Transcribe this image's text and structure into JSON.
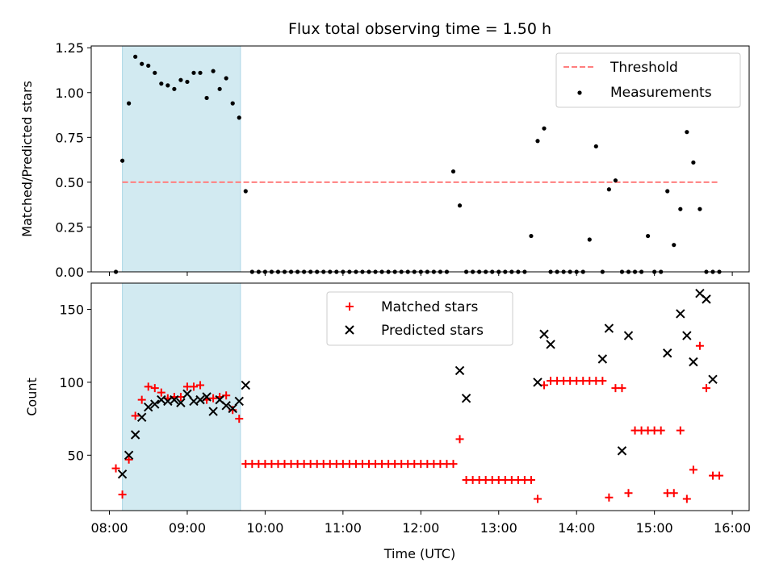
{
  "title": "Flux total observing time = 1.50 h",
  "colors": {
    "shade": "#add8e6",
    "threshold": "#ff7f7f",
    "matched": "#ff0000",
    "predicted": "#000000",
    "measurement": "#000000"
  },
  "chart_data": [
    {
      "type": "scatter",
      "panel": "top",
      "ylabel": "Matched/Predicted stars",
      "xlim": [
        "07:46",
        "16:13"
      ],
      "ylim": [
        0,
        1.26
      ],
      "grid": false,
      "legend_placement": "top-right",
      "y_ticks": [
        {
          "value": 0,
          "label": "0.00"
        },
        {
          "value": 0.25,
          "label": "0.25"
        },
        {
          "value": 0.5,
          "label": "0.50"
        },
        {
          "value": 0.75,
          "label": "0.75"
        },
        {
          "value": 1.0,
          "label": "1.00"
        },
        {
          "value": 1.25,
          "label": "1.25"
        }
      ],
      "shaded_interval": [
        "08:10",
        "09:41"
      ],
      "threshold": {
        "name": "Threshold",
        "value": 0.5,
        "x_start": "08:10",
        "x_end": "15:50"
      },
      "series": [
        {
          "name": "Measurements",
          "marker": "dot",
          "x": [
            "08:05",
            "08:10",
            "08:15",
            "08:20",
            "08:25",
            "08:30",
            "08:35",
            "08:40",
            "08:45",
            "08:50",
            "08:55",
            "09:00",
            "09:05",
            "09:10",
            "09:15",
            "09:20",
            "09:25",
            "09:30",
            "09:35",
            "09:40",
            "09:45",
            "09:50",
            "09:55",
            "10:00",
            "10:05",
            "10:10",
            "10:15",
            "10:20",
            "10:25",
            "10:30",
            "10:35",
            "10:40",
            "10:45",
            "10:50",
            "10:55",
            "11:00",
            "11:05",
            "11:10",
            "11:15",
            "11:20",
            "11:25",
            "11:30",
            "11:35",
            "11:40",
            "11:45",
            "11:50",
            "11:55",
            "12:00",
            "12:05",
            "12:10",
            "12:15",
            "12:20",
            "12:25",
            "12:30",
            "12:35",
            "12:40",
            "12:45",
            "12:50",
            "12:55",
            "13:00",
            "13:05",
            "13:10",
            "13:15",
            "13:20",
            "13:25",
            "13:30",
            "13:35",
            "13:40",
            "13:45",
            "13:50",
            "13:55",
            "14:00",
            "14:05",
            "14:10",
            "14:15",
            "14:20",
            "14:25",
            "14:30",
            "14:35",
            "14:40",
            "14:45",
            "14:50",
            "14:55",
            "15:00",
            "15:05",
            "15:10",
            "15:15",
            "15:20",
            "15:25",
            "15:30",
            "15:35",
            "15:40",
            "15:45",
            "15:50"
          ],
          "y": [
            0,
            0.62,
            0.94,
            1.2,
            1.16,
            1.15,
            1.11,
            1.05,
            1.04,
            1.02,
            1.07,
            1.06,
            1.11,
            1.11,
            0.97,
            1.12,
            1.02,
            1.08,
            0.94,
            0.86,
            0.45,
            0,
            0,
            0,
            0,
            0,
            0,
            0,
            0,
            0,
            0,
            0,
            0,
            0,
            0,
            0,
            0,
            0,
            0,
            0,
            0,
            0,
            0,
            0,
            0,
            0,
            0,
            0,
            0,
            0,
            0,
            0,
            0.56,
            0.37,
            0,
            0,
            0,
            0,
            0,
            0,
            0,
            0,
            0,
            0,
            0.2,
            0.73,
            0.8,
            0,
            0,
            0,
            0,
            0,
            0,
            0.18,
            0.7,
            0,
            0.46,
            0.51,
            0,
            0,
            0,
            0,
            0.2,
            0,
            0,
            0.45,
            0.15,
            0.35,
            0.78,
            0.61,
            0.35,
            0,
            0,
            0
          ]
        }
      ]
    },
    {
      "type": "scatter",
      "panel": "bottom",
      "xlabel": "Time (UTC)",
      "ylabel": "Count",
      "xlim": [
        "07:46",
        "16:13"
      ],
      "ylim": [
        12,
        168
      ],
      "grid": false,
      "legend_placement": "top-center",
      "x_ticks": [
        "08:00",
        "09:00",
        "10:00",
        "11:00",
        "12:00",
        "13:00",
        "14:00",
        "15:00",
        "16:00"
      ],
      "y_ticks": [
        {
          "value": 50,
          "label": "50"
        },
        {
          "value": 100,
          "label": "100"
        },
        {
          "value": 150,
          "label": "150"
        }
      ],
      "shaded_interval": [
        "08:10",
        "09:41"
      ],
      "series": [
        {
          "name": "Matched stars",
          "marker": "plus",
          "points": [
            [
              "08:05",
              41
            ],
            [
              "08:10",
              23
            ],
            [
              "08:15",
              47
            ],
            [
              "08:20",
              77
            ],
            [
              "08:25",
              88
            ],
            [
              "08:30",
              97
            ],
            [
              "08:35",
              96
            ],
            [
              "08:40",
              93
            ],
            [
              "08:45",
              89
            ],
            [
              "08:50",
              90
            ],
            [
              "08:55",
              90
            ],
            [
              "09:00",
              97
            ],
            [
              "09:05",
              97
            ],
            [
              "09:10",
              98
            ],
            [
              "09:15",
              88
            ],
            [
              "09:20",
              89
            ],
            [
              "09:25",
              90
            ],
            [
              "09:30",
              91
            ],
            [
              "09:35",
              81
            ],
            [
              "09:40",
              75
            ],
            [
              "09:45",
              44
            ],
            [
              "09:50",
              44
            ],
            [
              "09:55",
              44
            ],
            [
              "10:00",
              44
            ],
            [
              "10:05",
              44
            ],
            [
              "10:10",
              44
            ],
            [
              "10:15",
              44
            ],
            [
              "10:20",
              44
            ],
            [
              "10:25",
              44
            ],
            [
              "10:30",
              44
            ],
            [
              "10:35",
              44
            ],
            [
              "10:40",
              44
            ],
            [
              "10:45",
              44
            ],
            [
              "10:50",
              44
            ],
            [
              "10:55",
              44
            ],
            [
              "11:00",
              44
            ],
            [
              "11:05",
              44
            ],
            [
              "11:10",
              44
            ],
            [
              "11:15",
              44
            ],
            [
              "11:20",
              44
            ],
            [
              "11:25",
              44
            ],
            [
              "11:30",
              44
            ],
            [
              "11:35",
              44
            ],
            [
              "11:40",
              44
            ],
            [
              "11:45",
              44
            ],
            [
              "11:50",
              44
            ],
            [
              "11:55",
              44
            ],
            [
              "12:00",
              44
            ],
            [
              "12:05",
              44
            ],
            [
              "12:10",
              44
            ],
            [
              "12:15",
              44
            ],
            [
              "12:20",
              44
            ],
            [
              "12:25",
              44
            ],
            [
              "12:30",
              61
            ],
            [
              "12:35",
              33
            ],
            [
              "12:40",
              33
            ],
            [
              "12:45",
              33
            ],
            [
              "12:50",
              33
            ],
            [
              "12:55",
              33
            ],
            [
              "13:00",
              33
            ],
            [
              "13:05",
              33
            ],
            [
              "13:10",
              33
            ],
            [
              "13:15",
              33
            ],
            [
              "13:20",
              33
            ],
            [
              "13:25",
              33
            ],
            [
              "13:30",
              20
            ],
            [
              "13:35",
              98
            ],
            [
              "13:40",
              101
            ],
            [
              "13:45",
              101
            ],
            [
              "13:50",
              101
            ],
            [
              "13:55",
              101
            ],
            [
              "14:00",
              101
            ],
            [
              "14:05",
              101
            ],
            [
              "14:10",
              101
            ],
            [
              "14:15",
              101
            ],
            [
              "14:20",
              101
            ],
            [
              "14:25",
              21
            ],
            [
              "14:30",
              96
            ],
            [
              "14:35",
              96
            ],
            [
              "14:40",
              24
            ],
            [
              "14:45",
              67
            ],
            [
              "14:50",
              67
            ],
            [
              "14:55",
              67
            ],
            [
              "15:00",
              67
            ],
            [
              "15:05",
              67
            ],
            [
              "15:10",
              24
            ],
            [
              "15:15",
              24
            ],
            [
              "15:20",
              67
            ],
            [
              "15:25",
              20
            ],
            [
              "15:30",
              40
            ],
            [
              "15:35",
              125
            ],
            [
              "15:40",
              96
            ],
            [
              "15:45",
              36
            ],
            [
              "15:50",
              36
            ]
          ]
        },
        {
          "name": "Predicted stars",
          "marker": "x",
          "points": [
            [
              "08:10",
              37
            ],
            [
              "08:15",
              50
            ],
            [
              "08:20",
              64
            ],
            [
              "08:25",
              76
            ],
            [
              "08:30",
              83
            ],
            [
              "08:35",
              85
            ],
            [
              "08:40",
              88
            ],
            [
              "08:45",
              87
            ],
            [
              "08:50",
              88
            ],
            [
              "08:55",
              86
            ],
            [
              "09:00",
              92
            ],
            [
              "09:05",
              87
            ],
            [
              "09:10",
              88
            ],
            [
              "09:15",
              90
            ],
            [
              "09:20",
              80
            ],
            [
              "09:25",
              88
            ],
            [
              "09:30",
              84
            ],
            [
              "09:35",
              82
            ],
            [
              "09:40",
              87
            ],
            [
              "09:45",
              98
            ],
            [
              "12:30",
              108
            ],
            [
              "12:35",
              89
            ],
            [
              "13:30",
              100
            ],
            [
              "13:35",
              133
            ],
            [
              "13:40",
              126
            ],
            [
              "14:20",
              116
            ],
            [
              "14:25",
              137
            ],
            [
              "14:35",
              53
            ],
            [
              "14:40",
              132
            ],
            [
              "15:10",
              120
            ],
            [
              "15:20",
              147
            ],
            [
              "15:25",
              132
            ],
            [
              "15:30",
              114
            ],
            [
              "15:35",
              161
            ],
            [
              "15:40",
              157
            ],
            [
              "15:45",
              102
            ]
          ]
        }
      ]
    }
  ]
}
